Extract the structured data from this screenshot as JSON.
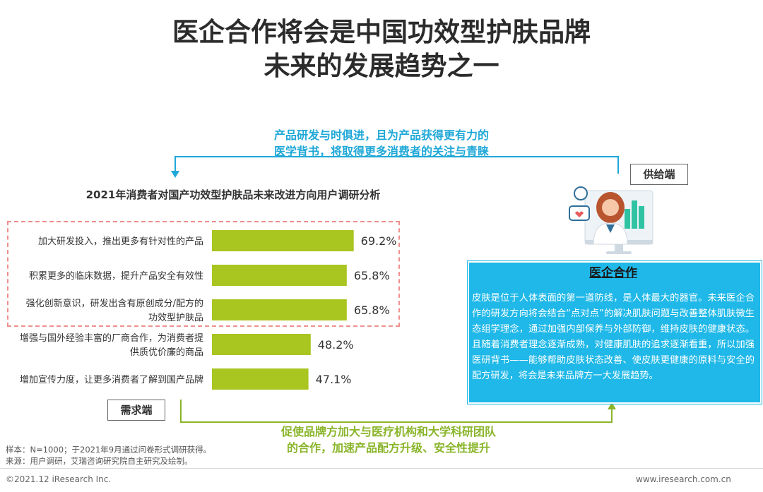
{
  "title_line1": "医企合作将会是中国功效型护肤品牌",
  "title_line2": "未来的发展趋势之一",
  "top_caption_line1": "产品研发与时俱进，且为产品获得更有力的",
  "top_caption_line2": "医学背书，将取得更多消费者的关注与青睐",
  "supply_label": "供给端",
  "demand_label": "需求端",
  "panel": {
    "title": "医企合作",
    "body": "皮肤是位于人体表面的第一道防线，是人体最大的器官。未来医企合作的研发方向将会结合“点对点”的解决肌肤问题与改善整体肌肤微生态组学理念，通过加强内部保养与外部防御，维持皮肤的健康状态。且随着消费者理念逐渐成熟，对健康肌肤的追求逐渐看重，所以加强医研背书——能够帮助皮肤状态改善、使皮肤更健康的原料与安全的配方研发，将会是未来品牌方一大发展趋势。"
  },
  "bottom_caption_line1": "促使品牌方加大与医疗机构和大学科研团队",
  "bottom_caption_line2": "的合作，加速产品配方升级、安全性提升",
  "note1": "样本：N=1000；于2021年9月通过问卷形式调研获得。",
  "note2": "来源：用户调研，艾瑞咨询研究院自主研究及绘制。",
  "footer_left": "©2021.12 iResearch Inc.",
  "footer_right": "www.iresearch.com.cn",
  "colors": {
    "bar": "#a8c520",
    "accent_blue": "#1fb8e8",
    "accent_green": "#8ab52a",
    "highlight": "#ef8f8f"
  },
  "chart_data": {
    "type": "bar",
    "orientation": "horizontal",
    "title": "2021年消费者对国产功效型护肤品未来改进方向用户调研分析",
    "categories": [
      [
        "加大研发投入，推出更多有针对性的产品"
      ],
      [
        "积累更多的临床数据，提升产品安全有效性"
      ],
      [
        "强化创新意识，研发出含有原创成分/配方的",
        "功效型护肤品"
      ],
      [
        "增强与国外经验丰富的厂商合作，为消费者提",
        "供质优价廉的商品"
      ],
      [
        "增加宣传力度，让更多消费者了解到国产品牌"
      ]
    ],
    "values": [
      69.2,
      65.8,
      65.8,
      48.2,
      47.1
    ],
    "value_labels": [
      "69.2%",
      "65.8%",
      "65.8%",
      "48.2%",
      "47.1%"
    ],
    "unit": "%",
    "highlighted_count": 3
  }
}
